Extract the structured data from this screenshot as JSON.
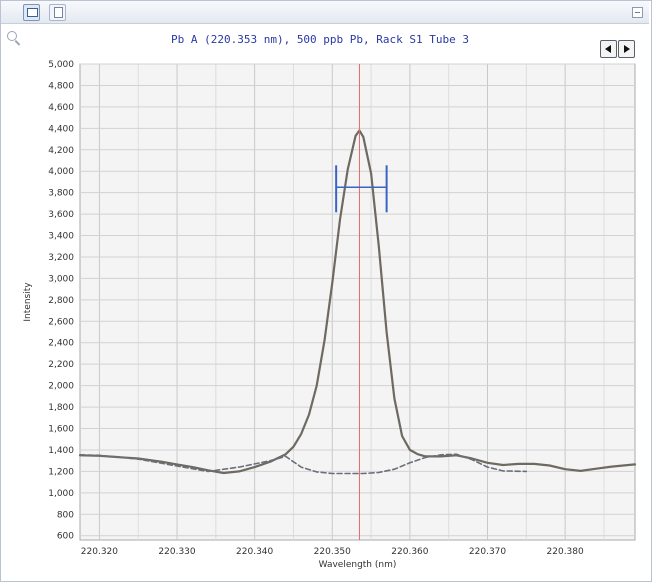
{
  "chart_data": {
    "type": "line",
    "title": "Pb A (220.353 nm), 500 ppb Pb, Rack S1 Tube 3",
    "xlabel": "Wavelength (nm)",
    "ylabel": "Intensity",
    "xlim": [
      220.3175,
      220.389
    ],
    "ylim": [
      560,
      5000
    ],
    "grid": true,
    "x_ticks": [
      "220.320",
      "220.330",
      "220.340",
      "220.350",
      "220.360",
      "220.370",
      "220.380"
    ],
    "y_ticks": [
      "600",
      "800",
      "1,000",
      "1,200",
      "1,400",
      "1,600",
      "1,800",
      "2,000",
      "2,200",
      "2,400",
      "2,600",
      "2,800",
      "3,000",
      "3,200",
      "3,400",
      "3,600",
      "3,800",
      "4,000",
      "4,200",
      "4,400",
      "4,600",
      "4,800",
      "5,000"
    ],
    "peak_marker_x": 220.3535,
    "peak_window": {
      "x_start": 220.3505,
      "x_end": 220.357,
      "y": 3850
    },
    "colors": {
      "sample": "#6e6a62",
      "blank": "#6a6f7c",
      "marker": "#e06a6a",
      "window": "#3a63c4"
    },
    "series": [
      {
        "style": "solid",
        "x": [
          220.3175,
          220.32,
          220.322,
          220.325,
          220.328,
          220.33,
          220.332,
          220.334,
          220.336,
          220.338,
          220.34,
          220.342,
          220.344,
          220.345,
          220.346,
          220.347,
          220.348,
          220.349,
          220.35,
          220.351,
          220.352,
          220.353,
          220.3535,
          220.354,
          220.355,
          220.356,
          220.357,
          220.358,
          220.359,
          220.36,
          220.361,
          220.362,
          220.364,
          220.366,
          220.368,
          220.37,
          220.372,
          220.374,
          220.376,
          220.378,
          220.38,
          220.382,
          220.384,
          220.386,
          220.389
        ],
        "values": [
          1350,
          1345,
          1335,
          1320,
          1290,
          1265,
          1240,
          1210,
          1185,
          1200,
          1240,
          1290,
          1360,
          1430,
          1550,
          1730,
          2000,
          2420,
          2960,
          3550,
          4020,
          4330,
          4380,
          4320,
          3980,
          3300,
          2500,
          1880,
          1530,
          1400,
          1360,
          1340,
          1340,
          1350,
          1320,
          1280,
          1260,
          1270,
          1270,
          1255,
          1220,
          1205,
          1225,
          1245,
          1265
        ]
      },
      {
        "style": "dashed",
        "x": [
          220.3175,
          220.32,
          220.325,
          220.33,
          220.334,
          220.338,
          220.342,
          220.344,
          220.346,
          220.348,
          220.35,
          220.352,
          220.354,
          220.356,
          220.358,
          220.36,
          220.362,
          220.364,
          220.366,
          220.368,
          220.37,
          220.372,
          220.375
        ],
        "values": [
          1355,
          1350,
          1315,
          1250,
          1200,
          1240,
          1300,
          1340,
          1240,
          1195,
          1180,
          1180,
          1180,
          1190,
          1220,
          1280,
          1330,
          1355,
          1360,
          1310,
          1240,
          1205,
          1200
        ]
      }
    ]
  }
}
